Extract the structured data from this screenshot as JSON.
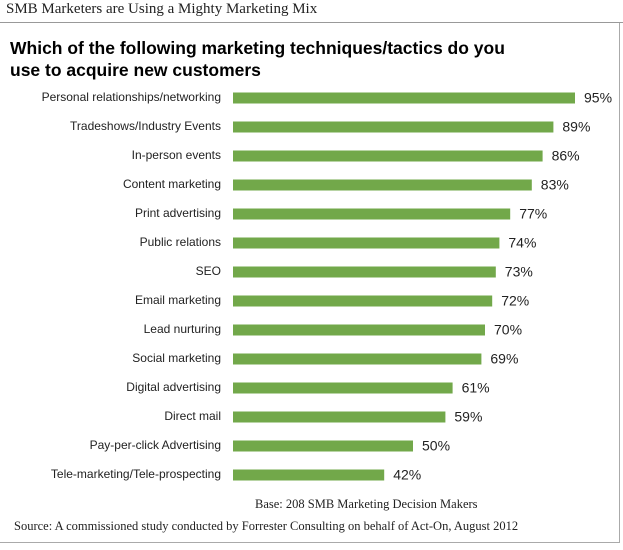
{
  "header": "SMB Marketers are Using a Mighty Marketing Mix",
  "chart_data": {
    "type": "bar",
    "title": "Which of the following marketing techniques/tactics do you use to acquire new customers",
    "categories": [
      "Personal relationships/networking",
      "Tradeshows/Industry Events",
      "In-person events",
      "Content marketing",
      "Print advertising",
      "Public relations",
      "SEO",
      "Email marketing",
      "Lead nurturing",
      "Social marketing",
      "Digital advertising",
      "Direct mail",
      "Pay-per-click Advertising",
      "Tele-marketing/Tele-prospecting"
    ],
    "values": [
      95,
      89,
      86,
      83,
      77,
      74,
      73,
      72,
      70,
      69,
      61,
      59,
      50,
      42
    ],
    "value_labels": [
      "95%",
      "89%",
      "86%",
      "83%",
      "77%",
      "74%",
      "73%",
      "72%",
      "70%",
      "69%",
      "61%",
      "59%",
      "50%",
      "42%"
    ],
    "color": "#72a84a",
    "note": "Base: 208 SMB Marketing Decision Makers",
    "source": "Source: A commissioned study conducted by Forrester Consulting on behalf of Act-On, August 2012"
  }
}
